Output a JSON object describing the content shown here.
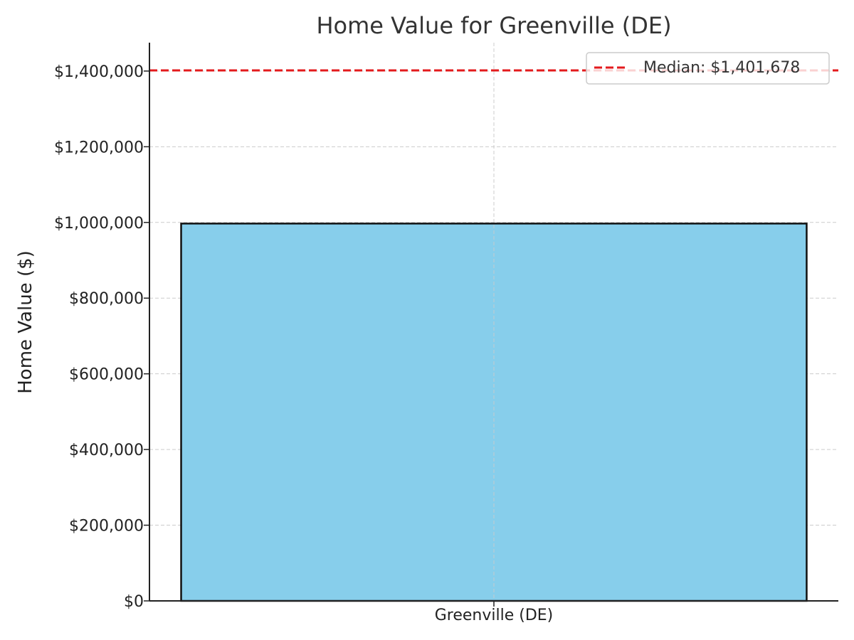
{
  "chart_data": {
    "type": "bar",
    "title": "Home Value for Greenville (DE)",
    "xlabel": "",
    "ylabel": "Home Value ($)",
    "categories": [
      "Greenville (DE)"
    ],
    "values": [
      997000
    ],
    "ylim": [
      0,
      1475000
    ],
    "yticks": [
      0,
      200000,
      400000,
      600000,
      800000,
      1000000,
      1200000,
      1400000
    ],
    "ytick_labels": [
      "$0",
      "$200,000",
      "$400,000",
      "$600,000",
      "$800,000",
      "$1,000,000",
      "$1,200,000",
      "$1,400,000"
    ],
    "reference_line": {
      "value": 1401678,
      "label": "Median: $1,401,678",
      "style": "dashed"
    },
    "grid": true,
    "legend_position": "top-right",
    "colors": {
      "bar_fill": "#87CEEB",
      "bar_edge": "#111111",
      "median_line": "#E31A1C",
      "grid": "#cccccc"
    }
  }
}
